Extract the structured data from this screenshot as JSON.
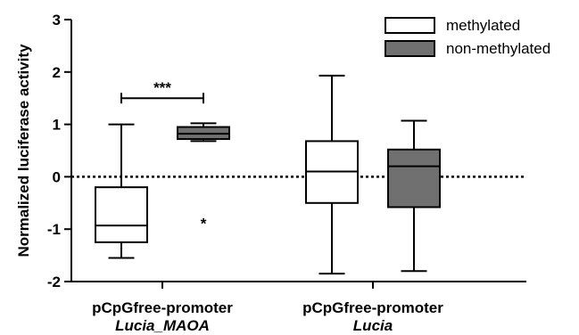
{
  "chart_data": {
    "type": "box",
    "ylabel": "Normalized luciferase activity",
    "ylim": [
      -2,
      3
    ],
    "yticks": [
      "-2",
      "-1",
      "0",
      "1",
      "2",
      "3"
    ],
    "reference_line": 0,
    "categories": [
      {
        "line1": "pCpGfree-promoter",
        "line2": "Lucia_MAOA"
      },
      {
        "line1": "pCpGfree-promoter",
        "line2": "Lucia"
      }
    ],
    "series": [
      {
        "name": "methylated",
        "color": "#ffffff",
        "boxes": [
          {
            "min": -1.55,
            "q1": -1.25,
            "median": -0.93,
            "q3": -0.2,
            "max": 1.0,
            "outliers": []
          },
          {
            "min": -1.85,
            "q1": -0.5,
            "median": 0.1,
            "q3": 0.68,
            "max": 1.93,
            "outliers": []
          }
        ]
      },
      {
        "name": "non-methylated",
        "color": "#707070",
        "boxes": [
          {
            "min": 0.68,
            "q1": 0.72,
            "median": 0.82,
            "q3": 0.95,
            "max": 1.02,
            "outliers": [
              -0.82
            ]
          },
          {
            "min": -1.8,
            "q1": -0.58,
            "median": 0.2,
            "q3": 0.52,
            "max": 1.07,
            "outliers": []
          }
        ]
      }
    ],
    "significance": {
      "label": "***",
      "category": 0,
      "y": 1.5
    },
    "legend_position": "top-right"
  }
}
